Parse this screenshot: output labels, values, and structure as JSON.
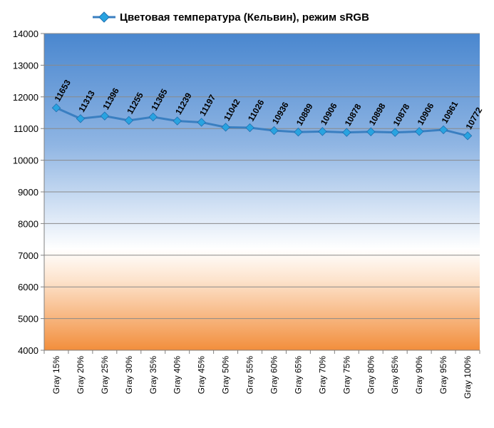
{
  "chart_data": {
    "type": "line",
    "title": "",
    "xlabel": "",
    "ylabel": "",
    "ylim": [
      4000,
      14000
    ],
    "y_ticks": [
      4000,
      5000,
      6000,
      7000,
      8000,
      9000,
      10000,
      11000,
      12000,
      13000,
      14000
    ],
    "grid": true,
    "legend_position": "top",
    "categories": [
      "Gray 15%",
      "Gray 20%",
      "Gray 25%",
      "Gray 30%",
      "Gray 35%",
      "Gray 40%",
      "Gray 45%",
      "Gray 50%",
      "Gray 55%",
      "Gray 60%",
      "Gray 65%",
      "Gray 70%",
      "Gray 75%",
      "Gray 80%",
      "Gray 85%",
      "Gray 90%",
      "Gray 95%",
      "Gray 100%"
    ],
    "series": [
      {
        "name": "Цветовая температура (Кельвин), режим sRGB",
        "color": "#3a7fc1",
        "marker_color": "#29a3e0",
        "values": [
          11653,
          11313,
          11396,
          11255,
          11365,
          11239,
          11197,
          11042,
          11026,
          10936,
          10889,
          10906,
          10878,
          10898,
          10878,
          10906,
          10961,
          10772
        ]
      }
    ],
    "background_gradient": [
      "#4a8bd4",
      "#ffffff",
      "#f0893a"
    ]
  }
}
